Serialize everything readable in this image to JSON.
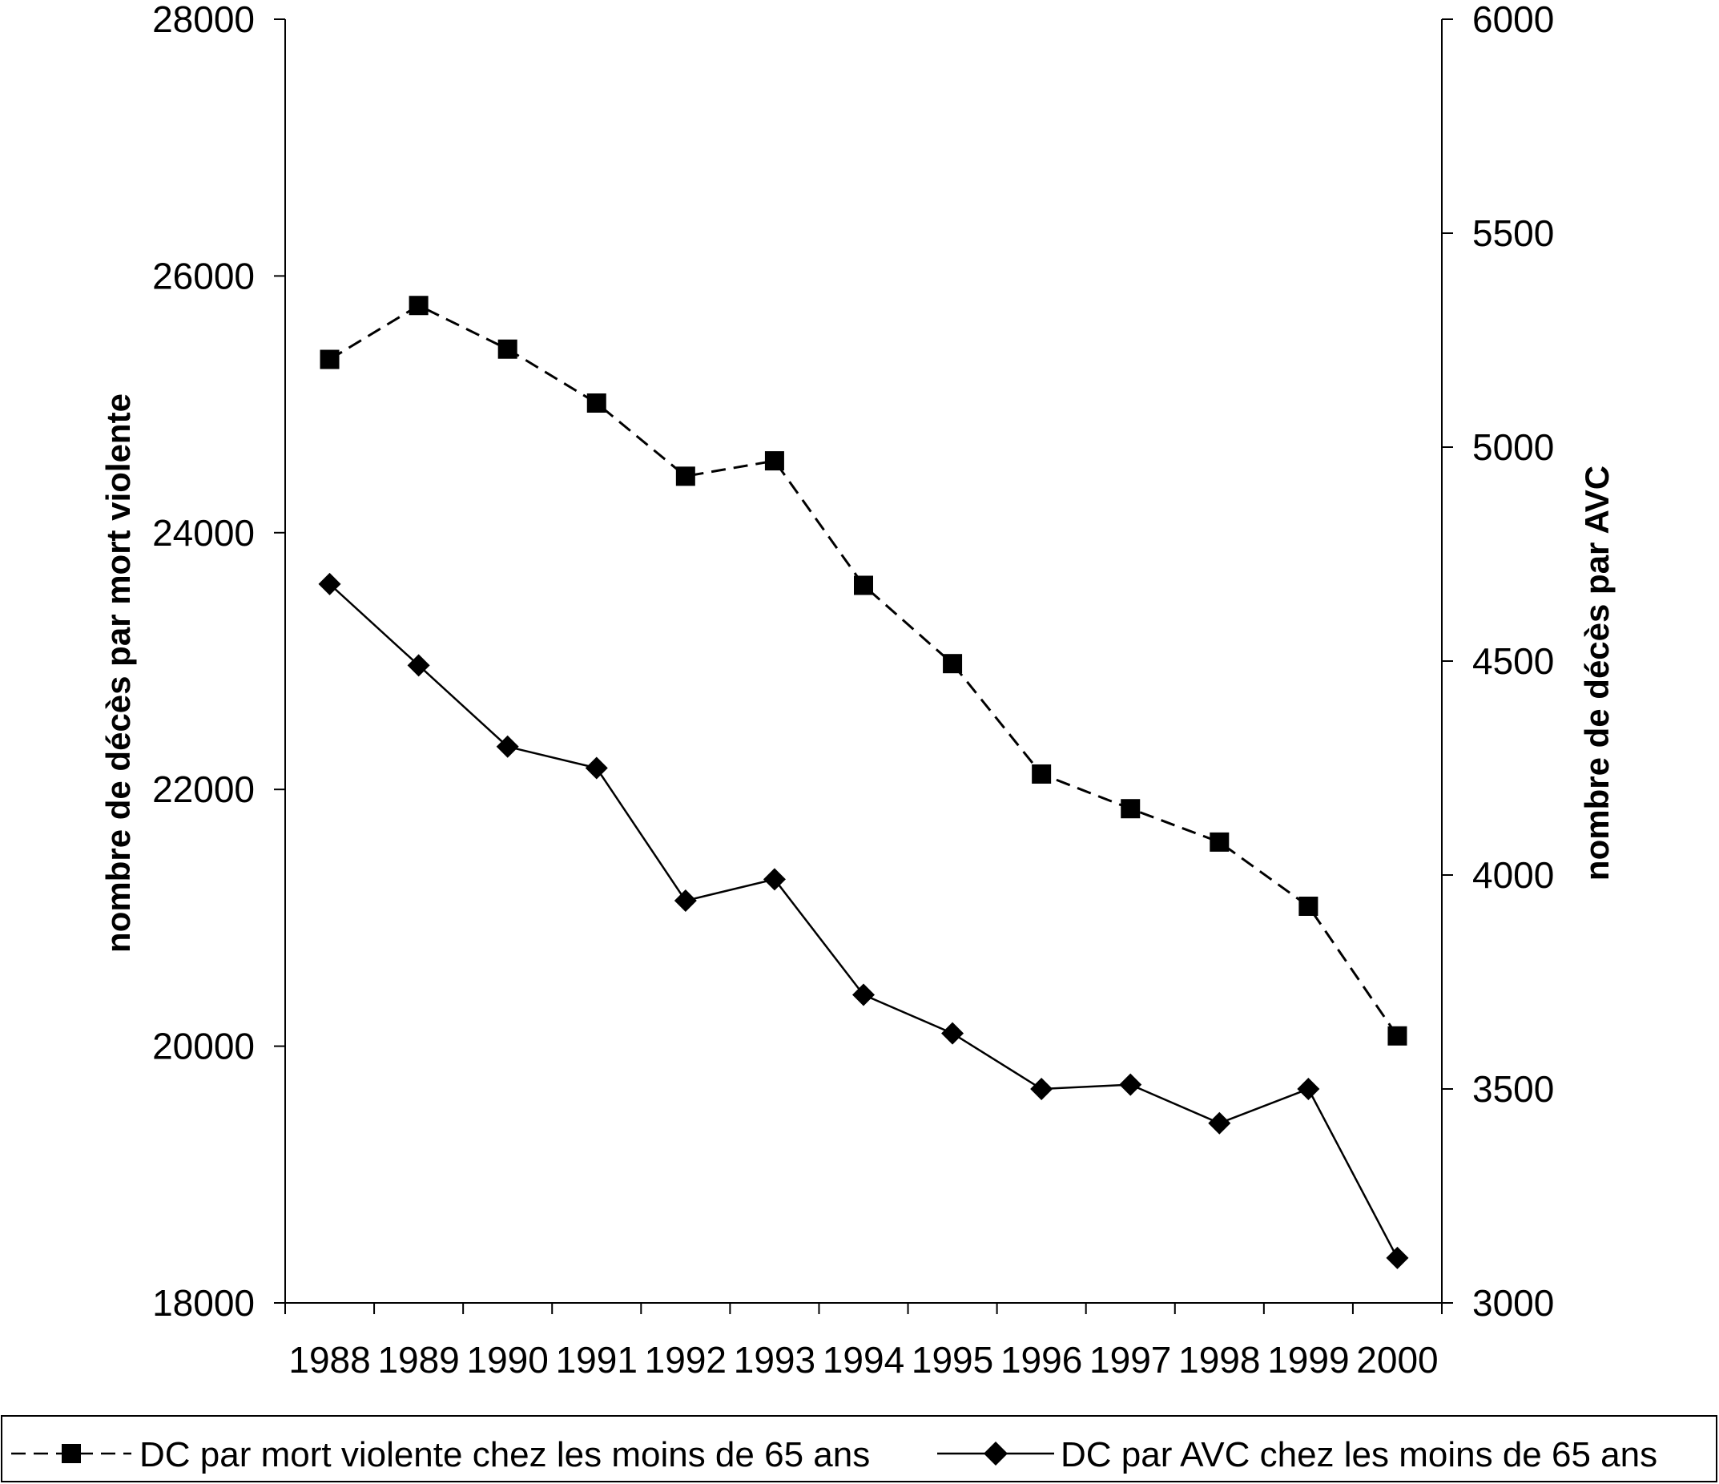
{
  "chart_data": {
    "type": "line",
    "title": "",
    "categories": [
      "1988",
      "1989",
      "1990",
      "1991",
      "1992",
      "1993",
      "1994",
      "1995",
      "1996",
      "1997",
      "1998",
      "1999",
      "2000"
    ],
    "y_left": {
      "label": "nombre de décès par mort violente",
      "range": [
        18000,
        28000
      ],
      "ticks": [
        "18000",
        "20000",
        "22000",
        "24000",
        "26000",
        "28000"
      ]
    },
    "y_right": {
      "label": "nombre de décès par AVC",
      "range": [
        3000,
        6000
      ],
      "ticks": [
        "3000",
        "3500",
        "4000",
        "4500",
        "5000",
        "5500",
        "6000"
      ]
    },
    "series": [
      {
        "name": "DC par mort violente chez les moins de 65 ans",
        "axis": "left",
        "line_style": "dashed",
        "marker": "square",
        "color": "#000000",
        "values": [
          25350,
          25770,
          25430,
          25010,
          24440,
          24560,
          23590,
          22980,
          22120,
          21850,
          21590,
          21090,
          20080
        ]
      },
      {
        "name": "DC par AVC chez les moins de 65 ans",
        "axis": "right",
        "line_style": "solid",
        "marker": "diamond",
        "color": "#000000",
        "values": [
          4680,
          4490,
          4300,
          4250,
          3940,
          3990,
          3720,
          3630,
          3500,
          3510,
          3420,
          3500,
          3105
        ]
      }
    ],
    "grid": false,
    "legend_position": "bottom"
  }
}
